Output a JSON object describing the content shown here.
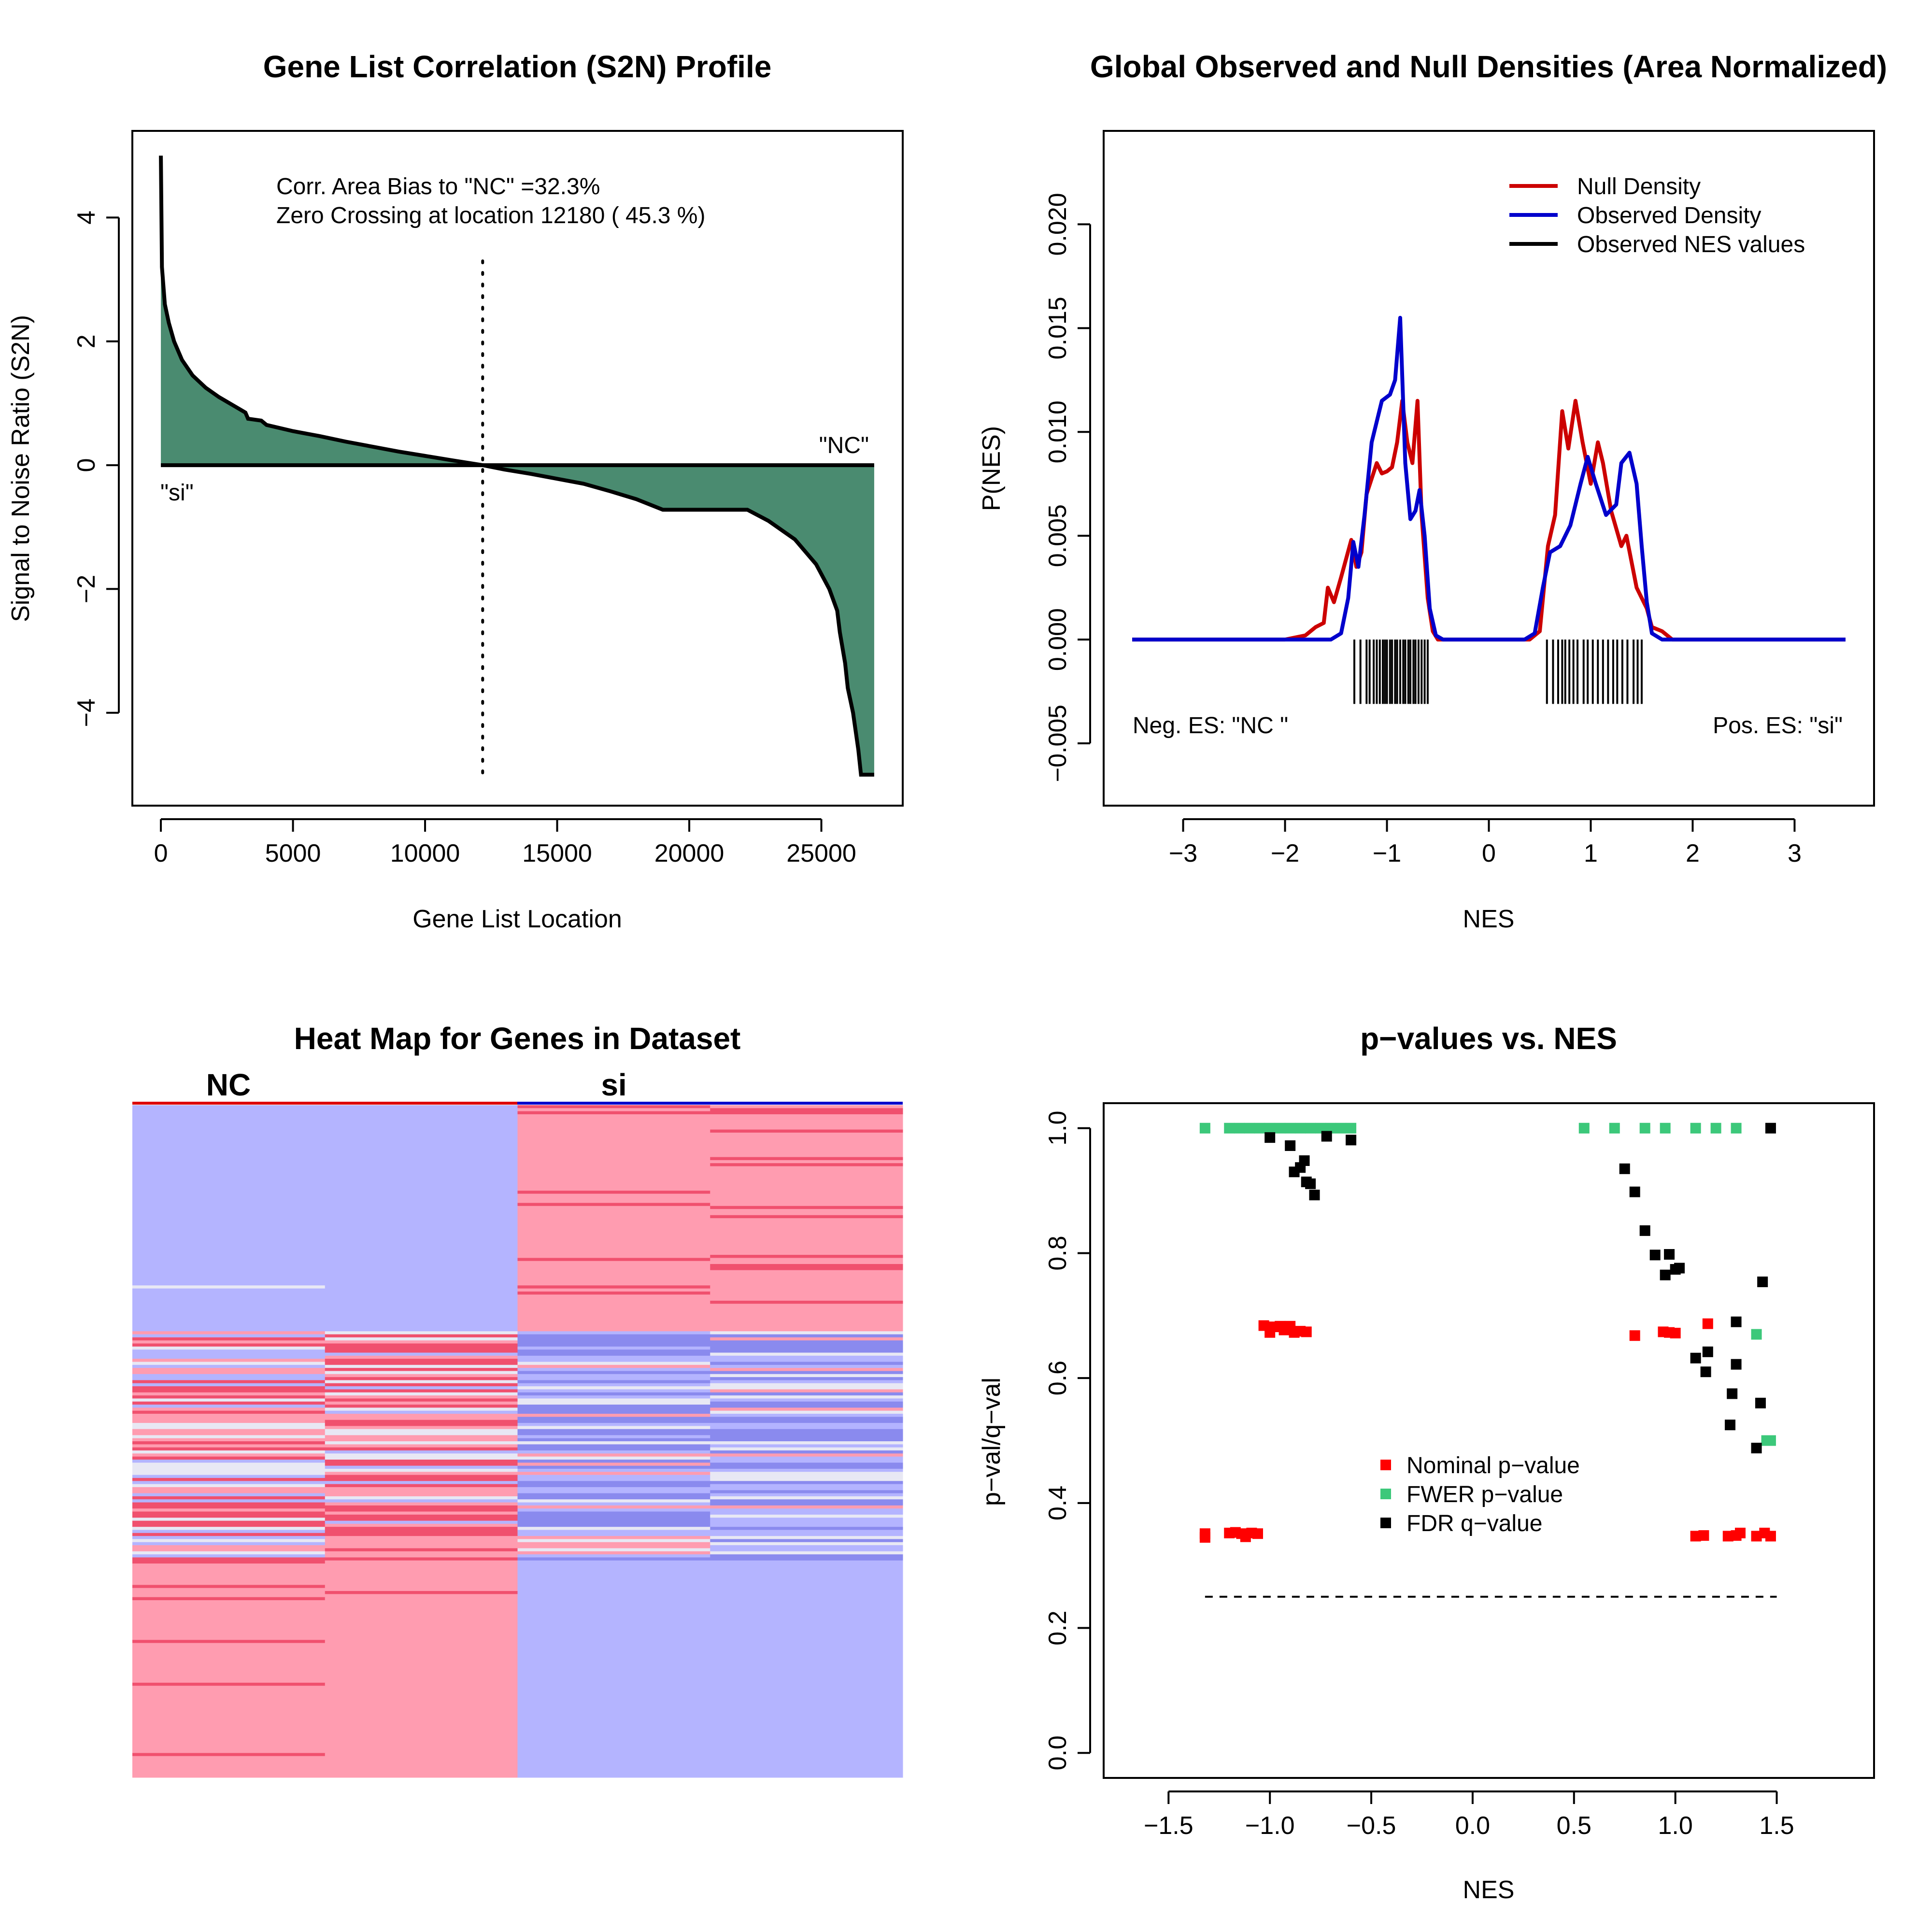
{
  "chart_data": [
    {
      "id": "s2n",
      "type": "area",
      "title": "Gene List Correlation (S2N) Profile",
      "xlabel": "Gene List Location",
      "ylabel": "Signal to Noise Ratio (S2N)",
      "xlim": [
        -1080,
        28080
      ],
      "ylim": [
        -5.5,
        5.4
      ],
      "xticks": [
        0,
        5000,
        10000,
        15000,
        20000,
        25000
      ],
      "xtick_labels": [
        "0",
        "5000",
        "10000",
        "15000",
        "20000",
        "25000"
      ],
      "yticks": [
        -4,
        -2,
        0,
        2,
        4
      ],
      "ytick_labels": [
        "−4",
        "−2",
        "0",
        "2",
        "4"
      ],
      "fill_color": "#4a8b70",
      "annotations": [
        "Corr. Area Bias to \"NC\" =32.3%",
        "Zero Crossing at location  12180  ( 45.3  %)"
      ],
      "label_pos_side": "\"NC\"",
      "label_neg_side": "\"si\"",
      "zero_crossing": 12180,
      "points": [
        [
          0,
          5
        ],
        [
          40,
          3.2
        ],
        [
          150,
          2.6
        ],
        [
          300,
          2.3
        ],
        [
          500,
          2.0
        ],
        [
          800,
          1.7
        ],
        [
          1200,
          1.45
        ],
        [
          1700,
          1.25
        ],
        [
          2200,
          1.1
        ],
        [
          2800,
          0.95
        ],
        [
          3200,
          0.85
        ],
        [
          3300,
          0.75
        ],
        [
          3800,
          0.72
        ],
        [
          4000,
          0.65
        ],
        [
          5000,
          0.55
        ],
        [
          6000,
          0.47
        ],
        [
          7000,
          0.38
        ],
        [
          8000,
          0.3
        ],
        [
          9000,
          0.22
        ],
        [
          10000,
          0.15
        ],
        [
          11000,
          0.08
        ],
        [
          12180,
          0
        ],
        [
          13000,
          -0.07
        ],
        [
          14000,
          -0.14
        ],
        [
          15000,
          -0.22
        ],
        [
          16000,
          -0.3
        ],
        [
          17000,
          -0.42
        ],
        [
          18000,
          -0.55
        ],
        [
          19000,
          -0.72
        ],
        [
          20000,
          -0.72
        ],
        [
          21000,
          -0.72
        ],
        [
          22200,
          -0.72
        ],
        [
          23000,
          -0.9
        ],
        [
          24000,
          -1.2
        ],
        [
          24800,
          -1.6
        ],
        [
          25300,
          -2.0
        ],
        [
          25600,
          -2.35
        ],
        [
          25700,
          -2.7
        ],
        [
          25900,
          -3.2
        ],
        [
          26000,
          -3.6
        ],
        [
          26200,
          -4.0
        ],
        [
          26400,
          -4.6
        ],
        [
          26500,
          -5.0
        ],
        [
          27000,
          -5.0
        ]
      ]
    },
    {
      "id": "densities",
      "type": "line",
      "title": "Global Observed and Null Densities (Area Normalized)",
      "xlabel": "NES",
      "ylabel": "P(NES)",
      "xlim": [
        -3.78,
        3.78
      ],
      "ylim": [
        -0.008,
        0.0245
      ],
      "xticks": [
        -3,
        -2,
        -1,
        0,
        1,
        2,
        3
      ],
      "xtick_labels": [
        "−3",
        "−2",
        "−1",
        "0",
        "1",
        "2",
        "3"
      ],
      "yticks": [
        -0.005,
        0.0,
        0.005,
        0.01,
        0.015,
        0.02
      ],
      "ytick_labels": [
        "−0.005",
        "0.000",
        "0.005",
        "0.010",
        "0.015",
        "0.020"
      ],
      "legend": [
        "Null Density",
        "Observed Density",
        "Observed NES values"
      ],
      "legend_position": "top-right",
      "text_left": "Neg. ES: \"NC \"",
      "text_right": "Pos. ES: \"si\"",
      "series": [
        {
          "name": "Null Density",
          "color": "#cc0000",
          "points": [
            [
              -3.5,
              0
            ],
            [
              -2.0,
              0
            ],
            [
              -1.8,
              0.0002
            ],
            [
              -1.7,
              0.0006
            ],
            [
              -1.62,
              0.0008
            ],
            [
              -1.58,
              0.0025
            ],
            [
              -1.52,
              0.0018
            ],
            [
              -1.45,
              0.003
            ],
            [
              -1.35,
              0.0048
            ],
            [
              -1.3,
              0.0035
            ],
            [
              -1.25,
              0.0042
            ],
            [
              -1.2,
              0.007
            ],
            [
              -1.1,
              0.0085
            ],
            [
              -1.05,
              0.008
            ],
            [
              -1.0,
              0.0081
            ],
            [
              -0.95,
              0.0083
            ],
            [
              -0.9,
              0.0095
            ],
            [
              -0.85,
              0.0115
            ],
            [
              -0.8,
              0.0095
            ],
            [
              -0.75,
              0.0085
            ],
            [
              -0.7,
              0.0115
            ],
            [
              -0.66,
              0.006
            ],
            [
              -0.6,
              0.002
            ],
            [
              -0.55,
              0.0004
            ],
            [
              -0.5,
              0
            ],
            [
              0.4,
              0
            ],
            [
              0.5,
              0.0004
            ],
            [
              0.58,
              0.0045
            ],
            [
              0.65,
              0.006
            ],
            [
              0.72,
              0.011
            ],
            [
              0.78,
              0.0092
            ],
            [
              0.85,
              0.0115
            ],
            [
              0.92,
              0.0095
            ],
            [
              1.0,
              0.0075
            ],
            [
              1.07,
              0.0095
            ],
            [
              1.12,
              0.0085
            ],
            [
              1.2,
              0.0062
            ],
            [
              1.3,
              0.0045
            ],
            [
              1.35,
              0.005
            ],
            [
              1.45,
              0.0025
            ],
            [
              1.55,
              0.0015
            ],
            [
              1.6,
              0.0006
            ],
            [
              1.7,
              0.0004
            ],
            [
              1.8,
              0
            ],
            [
              3.5,
              0
            ]
          ]
        },
        {
          "name": "Observed Density",
          "color": "#0000cc",
          "points": [
            [
              -3.5,
              0
            ],
            [
              -1.55,
              0
            ],
            [
              -1.45,
              0.0003
            ],
            [
              -1.38,
              0.002
            ],
            [
              -1.33,
              0.0047
            ],
            [
              -1.28,
              0.0035
            ],
            [
              -1.22,
              0.006
            ],
            [
              -1.15,
              0.0095
            ],
            [
              -1.05,
              0.0115
            ],
            [
              -0.97,
              0.0118
            ],
            [
              -0.92,
              0.0125
            ],
            [
              -0.87,
              0.0155
            ],
            [
              -0.82,
              0.0085
            ],
            [
              -0.77,
              0.0058
            ],
            [
              -0.72,
              0.0062
            ],
            [
              -0.68,
              0.0072
            ],
            [
              -0.63,
              0.005
            ],
            [
              -0.58,
              0.0015
            ],
            [
              -0.52,
              0.0002
            ],
            [
              -0.45,
              0
            ],
            [
              0.35,
              0
            ],
            [
              0.45,
              0.0003
            ],
            [
              0.53,
              0.0025
            ],
            [
              0.6,
              0.0042
            ],
            [
              0.7,
              0.0045
            ],
            [
              0.8,
              0.0055
            ],
            [
              0.9,
              0.0075
            ],
            [
              0.97,
              0.0088
            ],
            [
              1.05,
              0.0075
            ],
            [
              1.15,
              0.006
            ],
            [
              1.25,
              0.0065
            ],
            [
              1.3,
              0.0085
            ],
            [
              1.38,
              0.009
            ],
            [
              1.45,
              0.0075
            ],
            [
              1.5,
              0.0045
            ],
            [
              1.55,
              0.0018
            ],
            [
              1.6,
              0.0003
            ],
            [
              1.7,
              0
            ],
            [
              3.5,
              0
            ]
          ]
        }
      ],
      "rug": [
        -1.32,
        -1.26,
        -1.2,
        -1.17,
        -1.13,
        -1.1,
        -1.07,
        -1.04,
        -1.02,
        -1.0,
        -0.97,
        -0.95,
        -0.92,
        -0.9,
        -0.87,
        -0.84,
        -0.82,
        -0.79,
        -0.77,
        -0.74,
        -0.72,
        -0.69,
        -0.66,
        -0.63,
        -0.6,
        0.57,
        0.63,
        0.68,
        0.72,
        0.75,
        0.79,
        0.83,
        0.87,
        0.93,
        0.97,
        1.02,
        1.07,
        1.12,
        1.17,
        1.22,
        1.26,
        1.31,
        1.36,
        1.42,
        1.46,
        1.5
      ]
    },
    {
      "id": "heatmap",
      "type": "heatmap",
      "title": "Heat Map for Genes in Dataset",
      "column_groups": [
        "NC",
        "si"
      ],
      "group_colors": [
        "#dd0000",
        "#0000cc"
      ],
      "columns": 4,
      "colors": {
        "high": "#f0506e",
        "mid_high": "#ff9cb0",
        "neutral": "#e8e8f4",
        "mid_low": "#b4b4ff",
        "low": "#8a8aee"
      }
    },
    {
      "id": "pvals",
      "type": "scatter",
      "title": "p−values vs. NES",
      "xlabel": "NES",
      "ylabel": "p−val/q−val",
      "xlim": [
        -1.82,
        1.98
      ],
      "ylim": [
        -0.04,
        1.04
      ],
      "xticks": [
        -1.5,
        -1.0,
        -0.5,
        0.0,
        0.5,
        1.0,
        1.5
      ],
      "xtick_labels": [
        "−1.5",
        "−1.0",
        "−0.5",
        "0.0",
        "0.5",
        "1.0",
        "1.5"
      ],
      "yticks": [
        0.0,
        0.2,
        0.4,
        0.6,
        0.8,
        1.0
      ],
      "ytick_labels": [
        "0.0",
        "0.2",
        "0.4",
        "0.6",
        "0.8",
        "1.0"
      ],
      "threshold": 0.25,
      "legend_position": "center",
      "series": [
        {
          "name": "Nominal p−value",
          "color": "#ff0000",
          "points": [
            [
              -1.32,
              0.351
            ],
            [
              -1.32,
              0.345
            ],
            [
              -1.2,
              0.352
            ],
            [
              -1.17,
              0.353
            ],
            [
              -1.14,
              0.351
            ],
            [
              -1.12,
              0.346
            ],
            [
              -1.09,
              0.352
            ],
            [
              -1.06,
              0.351
            ],
            [
              -1.03,
              0.684
            ],
            [
              -1.0,
              0.673
            ],
            [
              -0.98,
              0.682
            ],
            [
              -0.95,
              0.683
            ],
            [
              -0.93,
              0.677
            ],
            [
              -0.9,
              0.683
            ],
            [
              -0.88,
              0.673
            ],
            [
              -0.85,
              0.675
            ],
            [
              -0.82,
              0.674
            ],
            [
              0.8,
              0.668
            ],
            [
              0.94,
              0.674
            ],
            [
              0.97,
              0.673
            ],
            [
              1.0,
              0.672
            ],
            [
              1.1,
              0.347
            ],
            [
              1.14,
              0.348
            ],
            [
              1.16,
              0.687
            ],
            [
              1.26,
              0.347
            ],
            [
              1.3,
              0.348
            ],
            [
              1.32,
              0.352
            ],
            [
              1.4,
              0.347
            ],
            [
              1.44,
              0.352
            ],
            [
              1.47,
              0.347
            ]
          ]
        },
        {
          "name": "FWER p−value",
          "color": "#3cc87a",
          "points": [
            [
              -1.32,
              1.0
            ],
            [
              -1.2,
              1.0
            ],
            [
              -1.15,
              1.0
            ],
            [
              -1.1,
              1.0
            ],
            [
              -1.05,
              1.0
            ],
            [
              -1.0,
              1.0
            ],
            [
              -0.95,
              1.0
            ],
            [
              -0.9,
              1.0
            ],
            [
              -0.85,
              1.0
            ],
            [
              -0.8,
              1.0
            ],
            [
              -0.75,
              1.0
            ],
            [
              -0.7,
              1.0
            ],
            [
              -0.65,
              1.0
            ],
            [
              -0.6,
              1.0
            ],
            [
              0.55,
              1.0
            ],
            [
              0.7,
              1.0
            ],
            [
              0.85,
              1.0
            ],
            [
              0.95,
              1.0
            ],
            [
              1.1,
              1.0
            ],
            [
              1.2,
              1.0
            ],
            [
              1.3,
              1.0
            ],
            [
              1.4,
              0.67
            ],
            [
              1.45,
              0.5
            ],
            [
              1.47,
              0.5
            ]
          ]
        },
        {
          "name": "FDR q−value",
          "color": "#000000",
          "points": [
            [
              -1.0,
              0.985
            ],
            [
              -0.9,
              0.972
            ],
            [
              -0.88,
              0.93
            ],
            [
              -0.85,
              0.937
            ],
            [
              -0.83,
              0.948
            ],
            [
              -0.82,
              0.914
            ],
            [
              -0.8,
              0.911
            ],
            [
              -0.78,
              0.893
            ],
            [
              -0.72,
              0.987
            ],
            [
              -0.6,
              0.981
            ],
            [
              0.75,
              0.935
            ],
            [
              0.8,
              0.898
            ],
            [
              0.85,
              0.836
            ],
            [
              0.9,
              0.797
            ],
            [
              0.95,
              0.765
            ],
            [
              0.97,
              0.798
            ],
            [
              1.0,
              0.774
            ],
            [
              1.02,
              0.776
            ],
            [
              1.1,
              0.632
            ],
            [
              1.15,
              0.61
            ],
            [
              1.16,
              0.642
            ],
            [
              1.27,
              0.525
            ],
            [
              1.28,
              0.575
            ],
            [
              1.3,
              0.622
            ],
            [
              1.3,
              0.69
            ],
            [
              1.4,
              0.488
            ],
            [
              1.42,
              0.56
            ],
            [
              1.43,
              0.754
            ],
            [
              1.47,
              1.0
            ]
          ]
        }
      ]
    }
  ]
}
